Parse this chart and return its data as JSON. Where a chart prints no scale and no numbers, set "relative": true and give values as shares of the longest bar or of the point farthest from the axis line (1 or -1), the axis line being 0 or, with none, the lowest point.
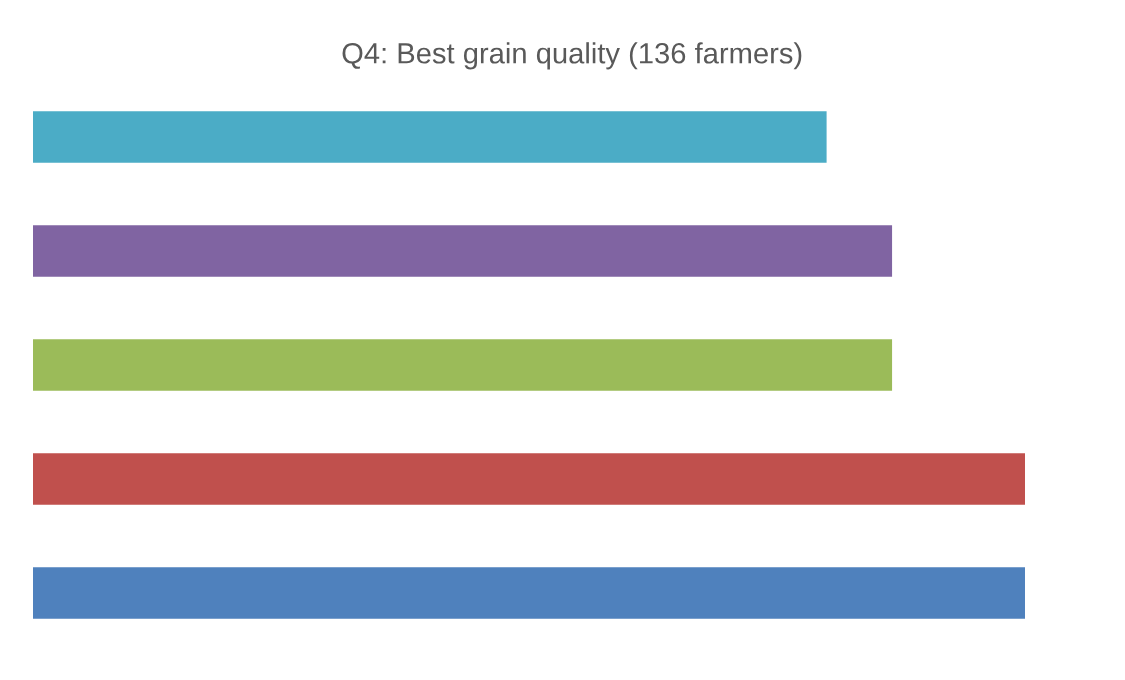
{
  "chart_data": {
    "type": "bar",
    "orientation": "horizontal",
    "relative": true,
    "title": "Q4: Best grain quality (136 farmers)",
    "categories": [
      null,
      null,
      null,
      null,
      null
    ],
    "values": [
      0.8,
      0.866,
      0.866,
      1,
      1
    ],
    "colors": [
      "#4bacc6",
      "#8064a2",
      "#9bbb59",
      "#c0504d",
      "#4f81bd"
    ]
  }
}
